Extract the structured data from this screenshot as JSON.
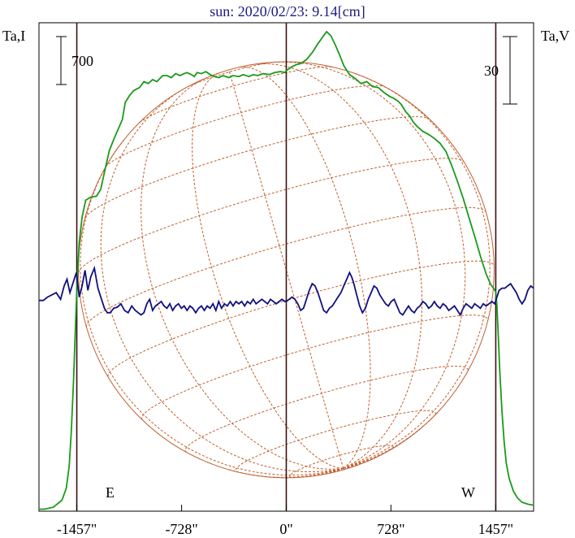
{
  "title": "sun: 2020/02/23: 9.14[cm]",
  "left_axis_label": "Ta,I",
  "right_axis_label": "Ta,V",
  "left_scale_label": "700",
  "right_scale_label": "30",
  "east_label": "E",
  "west_label": "W",
  "colors": {
    "background": "#ffffff",
    "frame": "#000000",
    "title": "#1a1a80",
    "stokes_i": "#1a9a1a",
    "stokes_v": "#101080",
    "limb_lines": "#3a1010",
    "disk": "#c06030"
  },
  "chart_data": {
    "type": "line",
    "title": "sun: 2020/02/23: 9.14[cm]",
    "xlabel": "",
    "x_unit": "arcsec",
    "xlim": [
      -1720,
      1720
    ],
    "x_ticks": [
      {
        "value": -1457,
        "label": "-1457\""
      },
      {
        "value": -728,
        "label": "-728\""
      },
      {
        "value": 0,
        "label": "0\""
      },
      {
        "value": 728,
        "label": "728\""
      },
      {
        "value": 1457,
        "label": "1457\""
      }
    ],
    "grid": false,
    "limb_markers": [
      {
        "x": -1457,
        "label": "E"
      },
      {
        "x": 0,
        "label": ""
      },
      {
        "x": 1457,
        "label": "W"
      }
    ],
    "series": [
      {
        "axis": "left",
        "y_label": "Ta,I",
        "scale_bar": 700,
        "ylim": [
          0,
          4900
        ],
        "points": [
          [
            -1720,
            20
          ],
          [
            -1680,
            20
          ],
          [
            -1620,
            40
          ],
          [
            -1560,
            110
          ],
          [
            -1530,
            230
          ],
          [
            -1510,
            450
          ],
          [
            -1495,
            800
          ],
          [
            -1480,
            1300
          ],
          [
            -1465,
            1900
          ],
          [
            -1455,
            2280
          ],
          [
            -1440,
            2700
          ],
          [
            -1420,
            2950
          ],
          [
            -1395,
            3120
          ],
          [
            -1360,
            3150
          ],
          [
            -1320,
            3160
          ],
          [
            -1290,
            3230
          ],
          [
            -1260,
            3430
          ],
          [
            -1230,
            3620
          ],
          [
            -1200,
            3730
          ],
          [
            -1170,
            3830
          ],
          [
            -1140,
            3930
          ],
          [
            -1120,
            4100
          ],
          [
            -1090,
            4170
          ],
          [
            -1060,
            4220
          ],
          [
            -1020,
            4250
          ],
          [
            -990,
            4310
          ],
          [
            -960,
            4290
          ],
          [
            -930,
            4330
          ],
          [
            -900,
            4310
          ],
          [
            -860,
            4370
          ],
          [
            -830,
            4370
          ],
          [
            -800,
            4350
          ],
          [
            -770,
            4390
          ],
          [
            -740,
            4370
          ],
          [
            -710,
            4390
          ],
          [
            -690,
            4400
          ],
          [
            -660,
            4380
          ],
          [
            -640,
            4360
          ],
          [
            -620,
            4400
          ],
          [
            -590,
            4390
          ],
          [
            -560,
            4410
          ],
          [
            -530,
            4380
          ],
          [
            -500,
            4360
          ],
          [
            -470,
            4350
          ],
          [
            -440,
            4370
          ],
          [
            -400,
            4350
          ],
          [
            -370,
            4370
          ],
          [
            -330,
            4360
          ],
          [
            -300,
            4380
          ],
          [
            -260,
            4360
          ],
          [
            -230,
            4380
          ],
          [
            -200,
            4370
          ],
          [
            -160,
            4390
          ],
          [
            -120,
            4380
          ],
          [
            -80,
            4400
          ],
          [
            -40,
            4410
          ],
          [
            -10,
            4400
          ],
          [
            0,
            4420
          ],
          [
            40,
            4460
          ],
          [
            70,
            4480
          ],
          [
            100,
            4490
          ],
          [
            140,
            4530
          ],
          [
            180,
            4600
          ],
          [
            220,
            4690
          ],
          [
            250,
            4750
          ],
          [
            280,
            4810
          ],
          [
            310,
            4770
          ],
          [
            340,
            4680
          ],
          [
            370,
            4580
          ],
          [
            400,
            4470
          ],
          [
            440,
            4380
          ],
          [
            480,
            4340
          ],
          [
            520,
            4290
          ],
          [
            560,
            4310
          ],
          [
            600,
            4260
          ],
          [
            640,
            4250
          ],
          [
            680,
            4200
          ],
          [
            720,
            4160
          ],
          [
            750,
            4140
          ],
          [
            780,
            4110
          ],
          [
            800,
            4080
          ],
          [
            830,
            4010
          ],
          [
            860,
            3960
          ],
          [
            880,
            3910
          ],
          [
            910,
            3860
          ],
          [
            950,
            3810
          ],
          [
            990,
            3780
          ],
          [
            1030,
            3740
          ],
          [
            1070,
            3690
          ],
          [
            1110,
            3610
          ],
          [
            1150,
            3470
          ],
          [
            1190,
            3310
          ],
          [
            1230,
            3140
          ],
          [
            1270,
            2950
          ],
          [
            1310,
            2760
          ],
          [
            1350,
            2560
          ],
          [
            1390,
            2380
          ],
          [
            1420,
            2280
          ],
          [
            1440,
            2240
          ],
          [
            1457,
            2200
          ],
          [
            1465,
            2060
          ],
          [
            1475,
            1750
          ],
          [
            1485,
            1400
          ],
          [
            1500,
            1000
          ],
          [
            1515,
            700
          ],
          [
            1530,
            480
          ],
          [
            1550,
            330
          ],
          [
            1580,
            200
          ],
          [
            1610,
            130
          ],
          [
            1640,
            90
          ],
          [
            1680,
            70
          ],
          [
            1720,
            60
          ]
        ]
      },
      {
        "axis": "right",
        "y_label": "Ta,V",
        "scale_bar": 30,
        "ylim": [
          -95,
          124
        ],
        "points": [
          [
            -1720,
            -0.5
          ],
          [
            -1690,
            -0.5
          ],
          [
            -1660,
            1
          ],
          [
            -1630,
            2
          ],
          [
            -1600,
            3
          ],
          [
            -1570,
            0
          ],
          [
            -1545,
            6
          ],
          [
            -1525,
            9
          ],
          [
            -1505,
            3
          ],
          [
            -1485,
            7
          ],
          [
            -1460,
            12
          ],
          [
            -1440,
            1
          ],
          [
            -1420,
            6
          ],
          [
            -1400,
            13
          ],
          [
            -1380,
            4
          ],
          [
            -1360,
            10
          ],
          [
            -1335,
            14
          ],
          [
            -1310,
            5
          ],
          [
            -1285,
            0
          ],
          [
            -1265,
            -4
          ],
          [
            -1245,
            -6
          ],
          [
            -1225,
            -6
          ],
          [
            -1200,
            -4
          ],
          [
            -1175,
            -3.5
          ],
          [
            -1150,
            -2
          ],
          [
            -1125,
            -5
          ],
          [
            -1100,
            -6
          ],
          [
            -1075,
            -3
          ],
          [
            -1050,
            -5
          ],
          [
            -1030,
            -6
          ],
          [
            -1010,
            -7
          ],
          [
            -990,
            -6
          ],
          [
            -970,
            -2
          ],
          [
            -950,
            0
          ],
          [
            -930,
            -5
          ],
          [
            -910,
            -3
          ],
          [
            -890,
            -2
          ],
          [
            -870,
            -1
          ],
          [
            -850,
            -3
          ],
          [
            -830,
            -4
          ],
          [
            -810,
            -2
          ],
          [
            -790,
            -5
          ],
          [
            -770,
            -3
          ],
          [
            -750,
            -2
          ],
          [
            -730,
            -4
          ],
          [
            -710,
            -3
          ],
          [
            -690,
            -5
          ],
          [
            -670,
            -3
          ],
          [
            -650,
            -4
          ],
          [
            -630,
            -6
          ],
          [
            -610,
            -4
          ],
          [
            -590,
            -3
          ],
          [
            -570,
            -5
          ],
          [
            -550,
            -3
          ],
          [
            -530,
            -4
          ],
          [
            -510,
            -2
          ],
          [
            -490,
            -5
          ],
          [
            -470,
            -1
          ],
          [
            -450,
            -4
          ],
          [
            -430,
            -2
          ],
          [
            -410,
            -3
          ],
          [
            -390,
            -1
          ],
          [
            -370,
            -3
          ],
          [
            -350,
            -1
          ],
          [
            -330,
            -2
          ],
          [
            -310,
            -1
          ],
          [
            -290,
            -3
          ],
          [
            -270,
            -1
          ],
          [
            -250,
            -2
          ],
          [
            -230,
            0
          ],
          [
            -210,
            -2
          ],
          [
            -190,
            -1
          ],
          [
            -170,
            0
          ],
          [
            -150,
            -1
          ],
          [
            -130,
            -2
          ],
          [
            -110,
            0
          ],
          [
            -90,
            -1
          ],
          [
            -70,
            -2
          ],
          [
            -50,
            -1
          ],
          [
            -30,
            0
          ],
          [
            -10,
            -1
          ],
          [
            0,
            -1
          ],
          [
            20,
            0
          ],
          [
            40,
            1
          ],
          [
            60,
            0
          ],
          [
            80,
            -2
          ],
          [
            100,
            -5
          ],
          [
            120,
            -4
          ],
          [
            140,
            0
          ],
          [
            160,
            4
          ],
          [
            180,
            7
          ],
          [
            200,
            6
          ],
          [
            220,
            3
          ],
          [
            240,
            -1
          ],
          [
            260,
            -5
          ],
          [
            280,
            -6
          ],
          [
            300,
            -4
          ],
          [
            320,
            -3
          ],
          [
            340,
            -1
          ],
          [
            360,
            1
          ],
          [
            380,
            3
          ],
          [
            400,
            6
          ],
          [
            420,
            9
          ],
          [
            440,
            12
          ],
          [
            455,
            10
          ],
          [
            470,
            7
          ],
          [
            490,
            2
          ],
          [
            510,
            -3
          ],
          [
            530,
            -6
          ],
          [
            550,
            -4
          ],
          [
            570,
            0
          ],
          [
            590,
            3
          ],
          [
            610,
            6
          ],
          [
            630,
            5
          ],
          [
            650,
            2
          ],
          [
            670,
            0
          ],
          [
            690,
            -2
          ],
          [
            710,
            -3
          ],
          [
            730,
            -1
          ],
          [
            750,
            0
          ],
          [
            770,
            -3
          ],
          [
            790,
            -6
          ],
          [
            810,
            -7
          ],
          [
            830,
            -5
          ],
          [
            850,
            -3
          ],
          [
            870,
            -5
          ],
          [
            890,
            -6
          ],
          [
            910,
            -4
          ],
          [
            930,
            -3
          ],
          [
            950,
            -1
          ],
          [
            970,
            -2
          ],
          [
            990,
            -4
          ],
          [
            1010,
            -3
          ],
          [
            1030,
            -1
          ],
          [
            1050,
            -3
          ],
          [
            1070,
            -4
          ],
          [
            1090,
            -2
          ],
          [
            1110,
            -3
          ],
          [
            1130,
            -5
          ],
          [
            1150,
            -4
          ],
          [
            1170,
            -3
          ],
          [
            1190,
            -5
          ],
          [
            1210,
            -7
          ],
          [
            1230,
            -4
          ],
          [
            1250,
            -2
          ],
          [
            1270,
            -3
          ],
          [
            1290,
            -4
          ],
          [
            1310,
            -2
          ],
          [
            1330,
            -3
          ],
          [
            1350,
            -4
          ],
          [
            1370,
            -2
          ],
          [
            1390,
            -3
          ],
          [
            1410,
            -2
          ],
          [
            1430,
            -1
          ],
          [
            1450,
            -2
          ],
          [
            1465,
            1
          ],
          [
            1480,
            4
          ],
          [
            1500,
            5
          ],
          [
            1520,
            5
          ],
          [
            1540,
            6
          ],
          [
            1560,
            7
          ],
          [
            1580,
            5
          ],
          [
            1600,
            3
          ],
          [
            1620,
            0
          ],
          [
            1640,
            -2
          ],
          [
            1660,
            0
          ],
          [
            1680,
            4
          ],
          [
            1700,
            6
          ],
          [
            1720,
            5
          ]
        ]
      }
    ]
  }
}
